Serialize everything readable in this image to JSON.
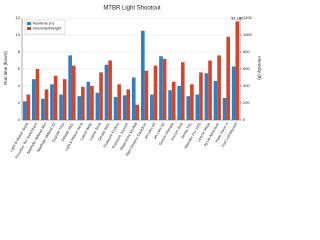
{
  "chart_data": {
    "type": "bar",
    "title": "MTBR Light Shootout",
    "y_label": "Run time (hours)",
    "y2_label": "Intensity ($)",
    "categories": [
      "Light & Motion Stella",
      "Princeton Tec Switchback",
      "NiteRider MiNewt Mini",
      "NiteRider MiNewt X2",
      "Cygolite Trion",
      "DiNotte 200L",
      "Light & Motion Seca",
      "Lupine Betty",
      "Lupine Tesla",
      "Dinotte 600L",
      "Exposure Enduro",
      "Exposure Joystick",
      "Magicshine MJ-808",
      "Baja Designs Squadron",
      "Jet Lites A3",
      "Jet Lites A2",
      "Gemini Olympia",
      "Xeccon Zeta",
      "Serfas TSL",
      "Niterider Pro 1200",
      "Lezyne Mega",
      "Ay Up Adventure",
      "Hope Vision 4",
      "Trail Led Maxwell"
    ],
    "series": [
      {
        "name": "Runtime (h)",
        "color": "#2f7fc1",
        "values": [
          2.2,
          4.8,
          2.5,
          4.2,
          3.0,
          7.6,
          2.8,
          4.5,
          3.2,
          6.5,
          2.7,
          2.9,
          5.0,
          10.5,
          3.0,
          7.5,
          3.5,
          4.0,
          2.8,
          3.0,
          5.5,
          4.6,
          2.6,
          6.3
        ]
      },
      {
        "name": "Intensity/Weight",
        "color": "#d2452e",
        "axis": "y2",
        "values": [
          300,
          600,
          360,
          520,
          480,
          640,
          390,
          400,
          560,
          700,
          420,
          360,
          180,
          580,
          640,
          720,
          450,
          680,
          420,
          560,
          700,
          760,
          980,
          1160
        ],
        "value_labels": [
          null,
          null,
          null,
          null,
          null,
          null,
          null,
          null,
          null,
          null,
          null,
          null,
          null,
          null,
          null,
          null,
          null,
          null,
          null,
          null,
          null,
          null,
          null,
          "$1,160"
        ]
      }
    ],
    "ylim": [
      0,
      12
    ],
    "yticks": [
      0,
      2,
      4,
      6,
      8,
      10,
      12
    ],
    "y2lim": [
      0,
      1200
    ],
    "y2ticks": [
      0,
      200,
      400,
      600,
      800,
      1000,
      1200
    ],
    "grid": true,
    "legend": "top-left"
  }
}
